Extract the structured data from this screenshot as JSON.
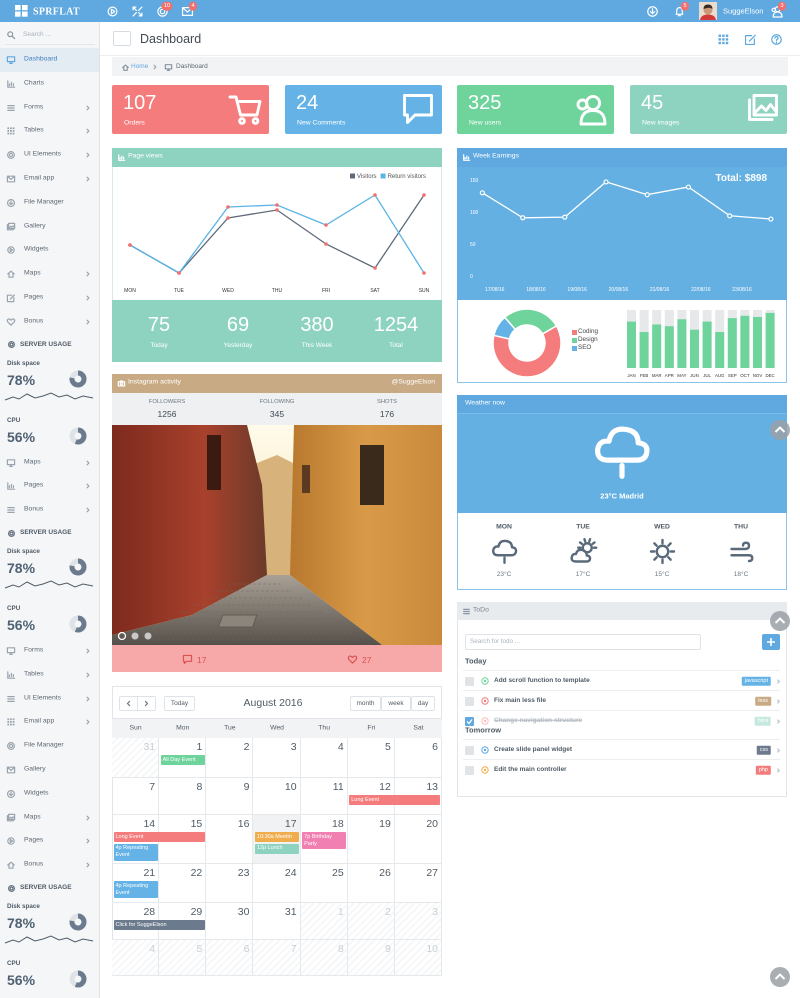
{
  "topbar": {
    "brand": "SPRFLAT",
    "badges": [
      "10",
      "4"
    ],
    "notifications": "5",
    "user": "SuggeElson",
    "messages": "3"
  },
  "sidebar": {
    "search": "Search ...",
    "groups": [
      {
        "items": [
          {
            "label": "Dashboard",
            "active": true
          },
          {
            "label": "Charts"
          },
          {
            "label": "Forms",
            "submenu": true
          },
          {
            "label": "Tables",
            "submenu": true
          },
          {
            "label": "UI Elements",
            "submenu": true
          },
          {
            "label": "Email app",
            "submenu": true
          },
          {
            "label": "File Manager"
          },
          {
            "label": "Gallery"
          },
          {
            "label": "Widgets"
          },
          {
            "label": "Maps",
            "submenu": true
          },
          {
            "label": "Pages",
            "submenu": true
          },
          {
            "label": "Bonus",
            "submenu": true
          }
        ]
      },
      {
        "section": "SERVER USAGE",
        "metrics": [
          {
            "name": "Disk space",
            "value": 78,
            "label": "78%"
          },
          {
            "name": "CPU",
            "value": 56,
            "label": "56%"
          }
        ]
      },
      {
        "items": [
          {
            "label": "Maps",
            "submenu": true
          },
          {
            "label": "Pages",
            "submenu": true
          },
          {
            "label": "Bonus",
            "submenu": true
          }
        ]
      },
      {
        "section": "SERVER USAGE",
        "metrics": [
          {
            "name": "Disk space",
            "value": 78,
            "label": "78%"
          },
          {
            "name": "CPU",
            "value": 56,
            "label": "56%"
          }
        ]
      },
      {
        "items": [
          {
            "label": "Forms",
            "submenu": true
          },
          {
            "label": "Tables",
            "submenu": true
          },
          {
            "label": "UI Elements",
            "submenu": true
          },
          {
            "label": "Email app",
            "submenu": true
          },
          {
            "label": "File Manager"
          },
          {
            "label": "Gallery"
          },
          {
            "label": "Widgets"
          },
          {
            "label": "Maps",
            "submenu": true
          },
          {
            "label": "Pages",
            "submenu": true
          },
          {
            "label": "Bonus",
            "submenu": true
          }
        ]
      },
      {
        "section": "SERVER USAGE",
        "metrics": [
          {
            "name": "Disk space",
            "value": 78,
            "label": "78%"
          },
          {
            "name": "CPU",
            "value": 56,
            "label": "56%"
          }
        ]
      }
    ]
  },
  "header": {
    "title": "Dashboard",
    "breadcrumb": [
      "Home",
      "Dashboard"
    ]
  },
  "stats": [
    {
      "value": 107,
      "label": "Orders",
      "color": "#f47c7c",
      "icon": "cart"
    },
    {
      "value": 24,
      "label": "New Comments",
      "color": "#65b3e6",
      "icon": "comment"
    },
    {
      "value": 325,
      "label": "New users",
      "color": "#6fd39c",
      "icon": "users"
    },
    {
      "value": 45,
      "label": "New images",
      "color": "#8ed3c0",
      "icon": "images"
    }
  ],
  "chart_data": [
    {
      "type": "line",
      "title": "Page views",
      "categories": [
        "MON",
        "TUE",
        "WED",
        "THU",
        "FRI",
        "SAT",
        "SUN"
      ],
      "series": [
        {
          "name": "Visitors",
          "color": "#5f6b7a",
          "values": [
            35,
            7,
            62,
            70,
            36,
            12,
            85
          ]
        },
        {
          "name": "Return visitors",
          "color": "#5ab4e5",
          "values": [
            35,
            7,
            73,
            75,
            55,
            85,
            7
          ]
        }
      ],
      "ylim": [
        0,
        100
      ],
      "marker_color": "#f0706f"
    },
    {
      "type": "line",
      "title": "Week Earnings",
      "annotation": "Total: $898",
      "x": [
        16.7,
        17.68,
        18.7,
        19.7,
        20.7,
        21.7,
        22.7,
        23.7
      ],
      "values": [
        130,
        91,
        92,
        147,
        127,
        139,
        94,
        89
      ],
      "color": "#ffffff",
      "xlim": [
        16.4,
        23.8
      ],
      "xticks": [
        {
          "value": 17,
          "label": "17/08/16"
        },
        {
          "value": 18,
          "label": "18/08/16"
        },
        {
          "value": 19,
          "label": "19/08/16"
        },
        {
          "value": 20,
          "label": "20/08/16"
        },
        {
          "value": 21,
          "label": "21/08/16"
        },
        {
          "value": 22,
          "label": "22/08/16"
        },
        {
          "value": 23,
          "label": "23/08/16"
        }
      ],
      "ylim": [
        0,
        160
      ],
      "yticks": [
        0,
        50,
        100,
        150
      ]
    },
    {
      "type": "pie",
      "donut": true,
      "categories": [
        "Coding",
        "Design",
        "SEO"
      ],
      "values": [
        62,
        28,
        10
      ],
      "colors": [
        "#f47c7c",
        "#6fd39c",
        "#65b3e6"
      ]
    },
    {
      "type": "bar",
      "categories": [
        "JAN",
        "FEB",
        "MAR",
        "APR",
        "MAY",
        "JUN",
        "JUL",
        "AUG",
        "SEP",
        "OCT",
        "NOV",
        "DEC"
      ],
      "values": [
        80,
        62,
        75,
        72,
        84,
        66,
        80,
        62,
        86,
        90,
        88,
        95
      ],
      "color": "#6fd39c",
      "background_color": "#e6e8ea",
      "ylim": [
        0,
        100
      ]
    }
  ],
  "page_views_summary": [
    {
      "value": 75,
      "label": "Today"
    },
    {
      "value": 69,
      "label": "Yesterday"
    },
    {
      "value": 380,
      "label": "This Week"
    },
    {
      "value": 1254,
      "label": "Total"
    }
  ],
  "instagram": {
    "title": "Instagram activity",
    "handle": "@SuggeElson",
    "stats": [
      {
        "label": "FOLLOWERS",
        "value": 1256
      },
      {
        "label": "FOLLOWING",
        "value": 345
      },
      {
        "label": "SHOTS",
        "value": 176
      }
    ],
    "comments": 17,
    "likes": 27
  },
  "weather": {
    "title": "Weather now",
    "current": "23°C Madrid",
    "days": [
      {
        "day": "MON",
        "temp": "23°C",
        "icon": "rain"
      },
      {
        "day": "TUE",
        "temp": "17°C",
        "icon": "partly"
      },
      {
        "day": "WED",
        "temp": "15°C",
        "icon": "sun"
      },
      {
        "day": "THU",
        "temp": "18°C",
        "icon": "wind"
      }
    ]
  },
  "todo": {
    "title": "ToDo",
    "search": "Search for todo ...",
    "groups": [
      {
        "name": "Today",
        "tasks": [
          {
            "text": "Add scroll function to template",
            "tag": "javascript",
            "tag_color": "#65b3e6",
            "status_color": "#6fd39c",
            "done": false
          },
          {
            "text": "Fix main less file",
            "tag": "less",
            "tag_color": "#c8ab84",
            "status_color": "#f47c7c",
            "done": false
          },
          {
            "text": "Change navigation structure",
            "tag": "html",
            "tag_color": "#8ed3c0",
            "status_color": "#f47c7c",
            "done": true
          }
        ]
      },
      {
        "name": "Tomorrow",
        "tasks": [
          {
            "text": "Create slide panel widget",
            "tag": "css",
            "tag_color": "#6b7a8c",
            "status_color": "#5fa9e0",
            "done": false
          },
          {
            "text": "Edit the main controller",
            "tag": "php",
            "tag_color": "#f47c7c",
            "status_color": "#f0ad4e",
            "done": false
          }
        ]
      }
    ]
  },
  "calendar": {
    "title": "August 2016",
    "buttons": [
      "Today",
      "month",
      "week",
      "day"
    ],
    "weekdays": [
      "Sun",
      "Mon",
      "Tue",
      "Wed",
      "Thu",
      "Fri",
      "Sat"
    ],
    "weeks": [
      [
        31,
        1,
        2,
        3,
        4,
        5,
        6
      ],
      [
        7,
        8,
        9,
        10,
        11,
        12,
        13
      ],
      [
        14,
        15,
        16,
        17,
        18,
        19,
        20
      ],
      [
        21,
        22,
        23,
        24,
        25,
        26,
        27
      ],
      [
        28,
        29,
        30,
        31,
        1,
        2,
        3
      ],
      [
        4,
        5,
        6,
        7,
        8,
        9,
        10
      ]
    ],
    "today": 17,
    "events": [
      {
        "text": "All Day Event",
        "date": 1,
        "days": 1,
        "color": "#6fd39c"
      },
      {
        "text": "Long Event",
        "date": 12,
        "days": 2,
        "color": "#f47c7c"
      },
      {
        "text": "Long Event",
        "date": 14,
        "days": 2,
        "color": "#f47c7c"
      },
      {
        "text": "4p Repeating Event",
        "date": 14,
        "days": 1,
        "color": "#65b3e6"
      },
      {
        "text": "10:30a Meetin",
        "date": 17,
        "days": 1,
        "color": "#f0ad4e"
      },
      {
        "text": "12p Lunch",
        "date": 17,
        "days": 1,
        "color": "#8ed3c0"
      },
      {
        "text": "7p Birthday Party",
        "date": 18,
        "days": 1,
        "color": "#f27fb2"
      },
      {
        "text": "4p Repeating Event",
        "date": 21,
        "days": 1,
        "color": "#65b3e6"
      },
      {
        "text": "Click for SuggeElson",
        "date": 28,
        "days": 2,
        "color": "#6b7a8c"
      }
    ]
  }
}
